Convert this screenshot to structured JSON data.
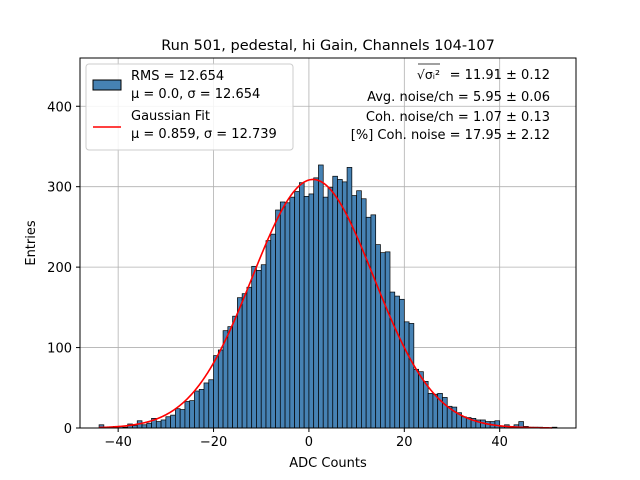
{
  "chart_data": {
    "type": "bar",
    "title": "Run 501, pedestal, hi Gain, Channels 104-107",
    "xlabel": "ADC Counts",
    "ylabel": "Entries",
    "xlim": [
      -48,
      56
    ],
    "ylim": [
      0,
      460
    ],
    "xticks": [
      -40,
      -20,
      0,
      20,
      40
    ],
    "xtick_labels": [
      "−40",
      "−20",
      "0",
      "20",
      "40"
    ],
    "yticks": [
      0,
      100,
      200,
      300,
      400
    ],
    "ytick_labels": [
      "0",
      "100",
      "200",
      "300",
      "400"
    ],
    "grid": true,
    "legend_position": "top-left",
    "series": [
      {
        "name": "RMS = 12.654",
        "name_line2": "μ = 0.0, σ = 12.654",
        "kind": "histogram",
        "color": "#4682b4",
        "edge_color": "#000000",
        "bin_edges_start": -44,
        "bin_width": 1,
        "values": [
          4,
          1,
          1,
          2,
          2,
          1,
          5,
          3,
          9,
          4,
          6,
          12,
          8,
          10,
          14,
          16,
          24,
          23,
          33,
          34,
          46,
          48,
          56,
          60,
          90,
          97,
          121,
          126,
          139,
          162,
          167,
          175,
          201,
          196,
          203,
          233,
          241,
          271,
          281,
          280,
          287,
          294,
          305,
          288,
          291,
          311,
          327,
          287,
          299,
          313,
          309,
          306,
          324,
          289,
          295,
          285,
          262,
          265,
          228,
          218,
          219,
          169,
          164,
          160,
          132,
          130,
          73,
          70,
          58,
          43,
          42,
          43,
          38,
          27,
          26,
          19,
          14,
          13,
          12,
          10,
          10,
          8,
          8,
          9,
          2,
          4,
          2,
          4,
          8,
          2,
          1,
          1,
          1,
          0,
          0,
          1
        ]
      },
      {
        "name": "Gaussian Fit",
        "name_line2": "μ = 0.859, σ = 12.739",
        "kind": "line",
        "color": "#ff0000",
        "mu": 0.859,
        "sigma": 12.739,
        "amplitude": 309,
        "x_range": [
          -44,
          51
        ]
      }
    ],
    "annotations": [
      {
        "prefix": "√σᵢ²",
        "text": " = 11.91 ± 0.12"
      },
      {
        "prefix": "",
        "text": "Avg. noise/ch = 5.95 ± 0.06"
      },
      {
        "prefix": "",
        "text": "Coh. noise/ch = 1.07 ± 0.13"
      },
      {
        "prefix": "",
        "text": "[%] Coh. noise = 17.95 ± 2.12"
      }
    ]
  }
}
